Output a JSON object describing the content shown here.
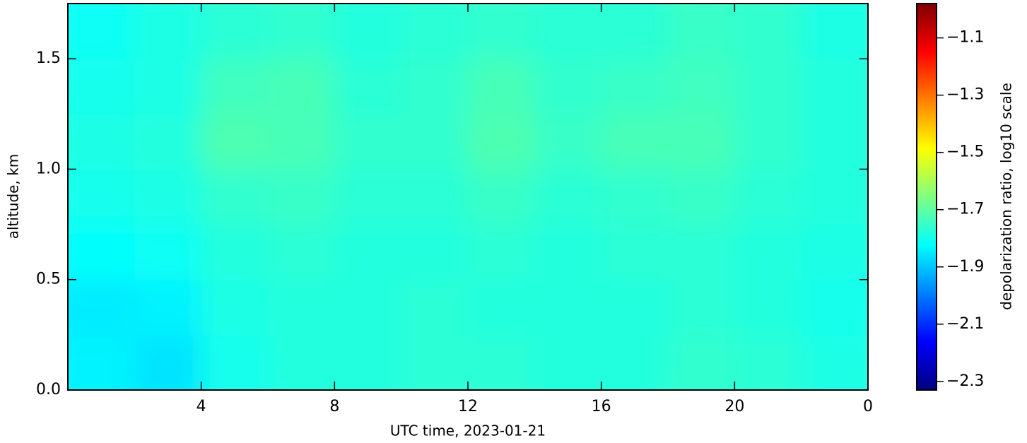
{
  "chart_data": {
    "type": "heatmap",
    "xlabel": "UTC time,  2023-01-21",
    "ylabel": "altitude, km",
    "colorbar_label": "depolarization ratio, log10 scale",
    "colormap": "jet",
    "x_bins": [
      0,
      2,
      4,
      6,
      8,
      10,
      12,
      14,
      16,
      18,
      20,
      22,
      24
    ],
    "y_bins": [
      0,
      0.25,
      0.5,
      0.75,
      1,
      1.25,
      1.5,
      1.75
    ],
    "z": [
      [
        -1.84,
        -1.86,
        -1.8,
        -1.78,
        -1.78,
        -1.77,
        -1.77,
        -1.78,
        -1.78,
        -1.76,
        -1.77,
        -1.79
      ],
      [
        -1.85,
        -1.84,
        -1.79,
        -1.78,
        -1.78,
        -1.77,
        -1.78,
        -1.78,
        -1.78,
        -1.77,
        -1.78,
        -1.8
      ],
      [
        -1.82,
        -1.81,
        -1.78,
        -1.77,
        -1.78,
        -1.78,
        -1.77,
        -1.78,
        -1.77,
        -1.77,
        -1.78,
        -1.79
      ],
      [
        -1.8,
        -1.79,
        -1.76,
        -1.75,
        -1.77,
        -1.77,
        -1.75,
        -1.77,
        -1.76,
        -1.75,
        -1.77,
        -1.78
      ],
      [
        -1.79,
        -1.78,
        -1.72,
        -1.73,
        -1.76,
        -1.76,
        -1.72,
        -1.75,
        -1.73,
        -1.73,
        -1.76,
        -1.78
      ],
      [
        -1.8,
        -1.79,
        -1.74,
        -1.73,
        -1.77,
        -1.76,
        -1.73,
        -1.76,
        -1.75,
        -1.74,
        -1.76,
        -1.78
      ],
      [
        -1.81,
        -1.79,
        -1.77,
        -1.76,
        -1.78,
        -1.77,
        -1.76,
        -1.77,
        -1.77,
        -1.75,
        -1.76,
        -1.79
      ]
    ],
    "xlim": [
      0,
      24
    ],
    "xticks": [
      4,
      8,
      12,
      16,
      20,
      {
        "value": 24,
        "label": "0"
      }
    ],
    "ylim": [
      0,
      1.75
    ],
    "yticks": [
      {
        "value": 0,
        "label": "0.0"
      },
      0.5,
      {
        "value": 1,
        "label": "1.0"
      },
      1.5
    ],
    "clim": [
      -2.33,
      -0.98
    ],
    "cticks": [
      {
        "value": -1.1,
        "label": "−1.1"
      },
      {
        "value": -1.3,
        "label": "−1.3"
      },
      {
        "value": -1.5,
        "label": "−1.5"
      },
      {
        "value": -1.7,
        "label": "−1.7"
      },
      {
        "value": -1.9,
        "label": "−1.9"
      },
      {
        "value": -2.1,
        "label": "−2.1"
      },
      {
        "value": -2.3,
        "label": "−2.3"
      }
    ]
  }
}
